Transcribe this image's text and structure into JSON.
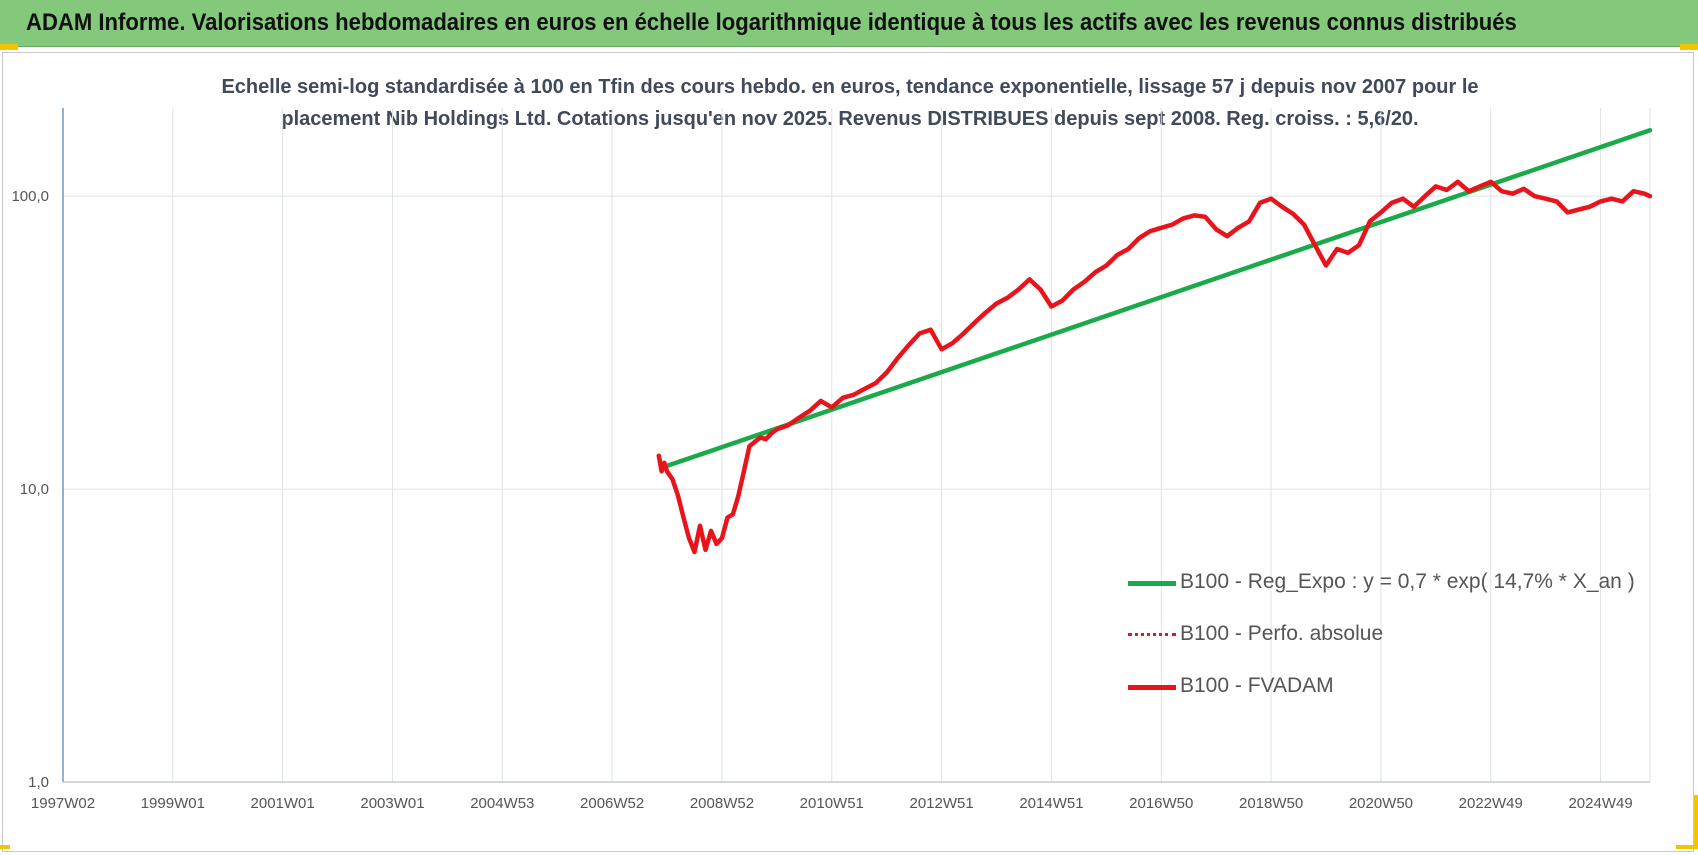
{
  "banner": {
    "title": "ADAM Informe. Valorisations hebdomadaires en euros en échelle logarithmique identique à tous les actifs avec les revenus connus distribués"
  },
  "chart_data": {
    "type": "line",
    "title_line1": "Echelle semi-log standardisée à 100 en Tfin des cours hebdo. en euros, tendance exponentielle, lissage 57 j depuis nov 2007 pour le",
    "title_line2": "placement Nib Holdings Ltd. Cotations jusqu'en nov 2025. Revenus DISTRIBUES depuis sept 2008. Reg. croiss. : 5,6/20.",
    "y_scale": "log",
    "ylim": [
      1,
      200
    ],
    "y_ticks": [
      {
        "value": 1,
        "label": "1,0"
      },
      {
        "value": 10,
        "label": "10,0"
      },
      {
        "value": 100,
        "label": "100,0"
      }
    ],
    "xlim": [
      1997.0,
      2025.9
    ],
    "x_ticks": [
      {
        "value": 1997.0,
        "label": "1997W02"
      },
      {
        "value": 1999.0,
        "label": "1999W01"
      },
      {
        "value": 2001.0,
        "label": "2001W01"
      },
      {
        "value": 2003.0,
        "label": "2003W01"
      },
      {
        "value": 2005.0,
        "label": "2004W53"
      },
      {
        "value": 2007.0,
        "label": "2006W52"
      },
      {
        "value": 2009.0,
        "label": "2008W52"
      },
      {
        "value": 2011.0,
        "label": "2010W51"
      },
      {
        "value": 2013.0,
        "label": "2012W51"
      },
      {
        "value": 2015.0,
        "label": "2014W51"
      },
      {
        "value": 2017.0,
        "label": "2016W50"
      },
      {
        "value": 2019.0,
        "label": "2018W50"
      },
      {
        "value": 2021.0,
        "label": "2020W50"
      },
      {
        "value": 2023.0,
        "label": "2022W49"
      },
      {
        "value": 2025.0,
        "label": "2024W49"
      }
    ],
    "grid": true,
    "legend_position": "right",
    "series": [
      {
        "name": "B100 - Reg_Expo : y = 0,7 * exp( 14,7% *  X_an )",
        "color": "#1aaa4a",
        "style": "solid",
        "x": [
          2008.0,
          2025.9
        ],
        "y": [
          12.0,
          168.0
        ]
      },
      {
        "name": "B100 - Perfo. absolue",
        "color": "#e8141c",
        "style": "dotted",
        "x": [],
        "y": []
      },
      {
        "name": "B100 - FVADAM",
        "color": "#e8141c",
        "style": "solid",
        "x": [
          2007.85,
          2007.9,
          2007.95,
          2008.0,
          2008.1,
          2008.2,
          2008.3,
          2008.4,
          2008.5,
          2008.6,
          2008.7,
          2008.8,
          2008.9,
          2009.0,
          2009.1,
          2009.2,
          2009.3,
          2009.4,
          2009.5,
          2009.6,
          2009.7,
          2009.8,
          2009.9,
          2010.0,
          2010.2,
          2010.4,
          2010.6,
          2010.8,
          2011.0,
          2011.2,
          2011.4,
          2011.6,
          2011.8,
          2012.0,
          2012.2,
          2012.4,
          2012.6,
          2012.8,
          2013.0,
          2013.2,
          2013.4,
          2013.6,
          2013.8,
          2014.0,
          2014.2,
          2014.4,
          2014.6,
          2014.8,
          2015.0,
          2015.2,
          2015.4,
          2015.6,
          2015.8,
          2016.0,
          2016.2,
          2016.4,
          2016.6,
          2016.8,
          2017.0,
          2017.2,
          2017.4,
          2017.6,
          2017.8,
          2018.0,
          2018.2,
          2018.4,
          2018.6,
          2018.8,
          2019.0,
          2019.2,
          2019.4,
          2019.6,
          2019.8,
          2020.0,
          2020.2,
          2020.4,
          2020.6,
          2020.8,
          2021.0,
          2021.2,
          2021.4,
          2021.6,
          2021.8,
          2022.0,
          2022.2,
          2022.4,
          2022.6,
          2022.8,
          2023.0,
          2023.2,
          2023.4,
          2023.6,
          2023.8,
          2024.0,
          2024.2,
          2024.4,
          2024.6,
          2024.8,
          2025.0,
          2025.2,
          2025.4,
          2025.6,
          2025.8,
          2025.9
        ],
        "y": [
          13.0,
          11.5,
          12.3,
          11.5,
          10.8,
          9.5,
          8.0,
          6.8,
          6.1,
          7.5,
          6.2,
          7.2,
          6.5,
          6.8,
          8.0,
          8.2,
          9.5,
          11.5,
          14.0,
          14.5,
          15.0,
          14.8,
          15.5,
          16.0,
          16.5,
          17.5,
          18.5,
          20.0,
          19.0,
          20.5,
          21.0,
          22.0,
          23.0,
          25.0,
          28.0,
          31.0,
          34.0,
          35.0,
          30.0,
          31.5,
          34.0,
          37.0,
          40.0,
          43.0,
          45.0,
          48.0,
          52.0,
          48.0,
          42.0,
          44.0,
          48.0,
          51.0,
          55.0,
          58.0,
          63.0,
          66.0,
          72.0,
          76.0,
          78.0,
          80.0,
          84.0,
          86.0,
          85.0,
          77.0,
          73.0,
          78.0,
          82.0,
          95.0,
          98.0,
          92.0,
          87.0,
          80.0,
          68.0,
          58.0,
          66.0,
          64.0,
          68.0,
          82.0,
          88.0,
          95.0,
          98.0,
          92.0,
          100.0,
          108.0,
          105.0,
          112.0,
          104.0,
          108.0,
          112.0,
          104.0,
          102.0,
          106.0,
          100.0,
          98.0,
          96.0,
          88.0,
          90.0,
          92.0,
          96.0,
          98.0,
          96.0,
          104.0,
          102.0,
          100.0
        ]
      }
    ]
  }
}
